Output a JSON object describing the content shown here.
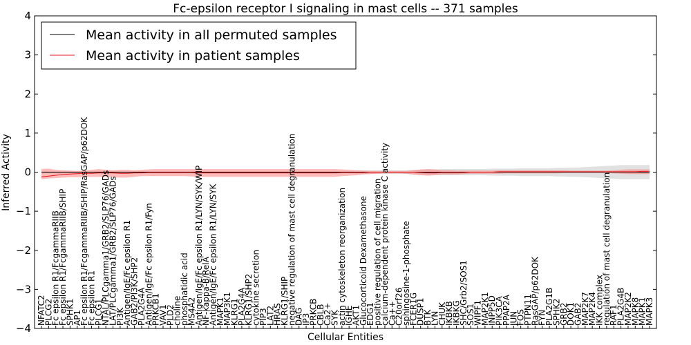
{
  "chart_data": {
    "type": "line",
    "title": "Fc-epsilon receptor I signaling in mast cells -- 371 samples",
    "xlabel": "Cellular Entities",
    "ylabel": "Inferred Activity",
    "ylim": [
      -4,
      4
    ],
    "yticks": [
      -4,
      -3,
      -2,
      -1,
      0,
      1,
      2,
      3,
      4
    ],
    "ytick_labels": [
      "−4",
      "−3",
      "−2",
      "−1",
      "0",
      "1",
      "2",
      "3",
      "4"
    ],
    "legend": {
      "placement": "top-left",
      "entries": [
        {
          "label": "Mean activity in all permuted samples",
          "color": "#000000"
        },
        {
          "label": "Mean activity in patient samples",
          "color": "#e41a1c"
        }
      ]
    },
    "categories": [
      "NFATC2",
      "PLCG2",
      "Fc epsilon R1/FcgammaRIIB",
      "Fc epsilon R1/FcgammaRIIB/SHIP",
      "SPHK1",
      "AP1",
      "Fc epsilon R1/FcgammaRIIB/SHIP/RasGAP/p62DOK",
      "Fc epsilon R1",
      "PLCG1",
      "NTAL/PLCgamma1/GRB2/SLP76/GADs",
      "LAT/PLCgamma1/GRB2/SLP76/GADs",
      "PI3K",
      "Antigen/IgE/Fc epsilon R1",
      "GAB2/PI3K/SHP2",
      "PLA2G4A",
      "Antigen/IgE/Fc epsilon R1/Fyn",
      "PRKCB1",
      "VAV1",
      "PLD2",
      "choline",
      "phosphatidic acid",
      "MS4A2",
      "Antigen/IgE/Fc epsilon R1/LYN/SYK/WIP",
      "NF-kappa-B/RelA",
      "Antigen/IgE/Fc epsilon R1/LYN/SYK",
      "MAPK1",
      "MAP3K1",
      "KLRG1",
      "PLA2G4A",
      "KLRG1/SHP2",
      "cytokine secretion",
      "PIP3",
      "LAT2",
      "HRAS",
      "KLRG1/SHIP",
      "negative regulation of mast cell degranulation",
      "DAG",
      "IP3",
      "PRKCB",
      "CBLB",
      "Ca2+",
      "SYK",
      "actin cytoskeleton reorganization",
      "IGHE",
      "AKT1",
      "Glucocorticoid Dexamethasone",
      "EDG1",
      "positive regulation of cell migration",
      "calcium-dependent protein kinase C activity",
      "Ca++",
      "C20orf26",
      "sphingosine-1-phosphate",
      "FCER1G",
      "DUSP1",
      "BTK",
      "LYN",
      "CHUK",
      "IKBKB",
      "IKBKG",
      "SHC/Grb2/SOS1",
      "SOS1",
      "WIPF1",
      "MAP2K1",
      "INPP5D",
      "PIK3CA",
      "PPAP2A",
      "JUN",
      "FOS",
      "PTPN11",
      "RasGAP/p62DOK",
      "FYN",
      "PLA2G1B",
      "SPHK2",
      "GRB2",
      "DOK1",
      "GAB2",
      "MAP2K7",
      "MAP2K4",
      "IKK complex",
      "regulation of mast cell degranulation",
      "RAF1",
      "PLA2G4B",
      "MAP2K2",
      "MAPK8",
      "MAPK1",
      "MAPK3"
    ],
    "series": [
      {
        "name": "Mean activity in patient samples",
        "color": "#e41a1c",
        "values": [
          -0.12,
          -0.1,
          -0.08,
          -0.06,
          -0.05,
          -0.04,
          -0.03,
          -0.03,
          -0.02,
          -0.02,
          -0.02,
          -0.03,
          -0.03,
          -0.02,
          -0.02,
          -0.01,
          -0.01,
          -0.01,
          -0.01,
          -0.01,
          -0.01,
          -0.01,
          -0.02,
          -0.02,
          -0.02,
          -0.02,
          -0.02,
          -0.02,
          -0.02,
          -0.02,
          -0.02,
          -0.02,
          -0.02,
          -0.02,
          -0.02,
          -0.02,
          -0.02,
          -0.02,
          -0.02,
          -0.02,
          -0.02,
          -0.02,
          -0.01,
          -0.01,
          -0.01,
          -0.01,
          0.0,
          0.0,
          0.0,
          0.0,
          0.0,
          0.0,
          0.0,
          -0.01,
          -0.02,
          -0.02,
          -0.01,
          -0.01,
          -0.01,
          -0.01,
          0.0,
          0.0,
          0.0,
          0.0,
          0.01,
          0.01,
          0.01,
          0.01,
          0.01,
          0.01,
          0.01,
          0.01,
          0.01,
          0.01,
          0.01,
          0.01,
          0.01,
          0.01,
          0.01,
          0.01,
          0.01,
          0.01,
          0.01,
          0.01,
          0.02,
          0.02
        ],
        "lower": [
          -0.18,
          -0.16,
          -0.15,
          -0.14,
          -0.13,
          -0.13,
          -0.12,
          -0.12,
          -0.12,
          -0.12,
          -0.13,
          -0.14,
          -0.14,
          -0.12,
          -0.1,
          -0.1,
          -0.1,
          -0.1,
          -0.1,
          -0.1,
          -0.1,
          -0.11,
          -0.12,
          -0.12,
          -0.12,
          -0.12,
          -0.12,
          -0.12,
          -0.12,
          -0.12,
          -0.12,
          -0.12,
          -0.12,
          -0.12,
          -0.12,
          -0.12,
          -0.12,
          -0.12,
          -0.12,
          -0.12,
          -0.12,
          -0.12,
          -0.1,
          -0.09,
          -0.08,
          -0.06,
          -0.05,
          -0.04,
          -0.03,
          -0.03,
          -0.03,
          -0.04,
          -0.06,
          -0.08,
          -0.09,
          -0.08,
          -0.06,
          -0.06,
          -0.06,
          -0.05,
          -0.04,
          -0.04,
          -0.04,
          -0.04,
          -0.04,
          -0.03,
          -0.03,
          -0.03,
          -0.03,
          -0.03,
          -0.03,
          -0.03,
          -0.03,
          -0.02,
          -0.02,
          -0.02,
          -0.02,
          -0.02,
          -0.02,
          -0.02,
          -0.03,
          -0.04,
          -0.05,
          -0.05,
          -0.05,
          -0.05
        ],
        "upper": [
          0.08,
          0.09,
          0.06,
          0.05,
          0.04,
          0.03,
          0.04,
          0.06,
          0.08,
          0.06,
          0.05,
          0.06,
          0.06,
          0.05,
          0.06,
          0.07,
          0.08,
          0.08,
          0.08,
          0.08,
          0.08,
          0.08,
          0.08,
          0.08,
          0.08,
          0.08,
          0.08,
          0.08,
          0.08,
          0.08,
          0.08,
          0.08,
          0.08,
          0.08,
          0.08,
          0.08,
          0.08,
          0.08,
          0.08,
          0.08,
          0.08,
          0.08,
          0.07,
          0.06,
          0.05,
          0.04,
          0.03,
          0.03,
          0.03,
          0.03,
          0.03,
          0.03,
          0.05,
          0.07,
          0.08,
          0.07,
          0.05,
          0.05,
          0.04,
          0.04,
          0.04,
          0.04,
          0.04,
          0.04,
          0.05,
          0.05,
          0.05,
          0.05,
          0.05,
          0.05,
          0.05,
          0.05,
          0.05,
          0.05,
          0.04,
          0.04,
          0.04,
          0.04,
          0.04,
          0.04,
          0.05,
          0.06,
          0.07,
          0.07,
          0.07,
          0.07
        ]
      },
      {
        "name": "Mean activity in all permuted samples",
        "color": "#000000",
        "values": [
          0,
          0,
          0,
          0,
          0,
          0,
          0,
          0,
          0,
          0,
          0,
          0,
          0,
          0,
          0,
          0,
          0,
          0,
          0,
          0,
          0,
          0,
          0,
          0,
          0,
          0,
          0,
          0,
          0,
          0,
          0,
          0,
          0,
          0,
          0,
          0,
          0,
          0,
          0,
          0,
          0,
          0,
          0,
          0,
          0,
          0,
          0,
          0,
          0,
          0,
          0,
          0,
          0,
          0,
          0,
          0,
          0,
          0,
          0,
          0,
          0,
          0,
          0,
          0,
          0,
          0,
          0,
          0,
          0,
          0,
          0,
          0,
          0,
          0,
          0,
          0,
          0,
          0,
          0,
          0,
          0,
          0,
          0,
          0,
          0,
          0
        ],
        "lower": [
          -0.03,
          -0.03,
          -0.03,
          -0.03,
          -0.03,
          -0.03,
          -0.03,
          -0.03,
          -0.03,
          -0.03,
          -0.03,
          -0.03,
          -0.03,
          -0.03,
          -0.03,
          -0.03,
          -0.03,
          -0.03,
          -0.03,
          -0.03,
          -0.03,
          -0.03,
          -0.03,
          -0.03,
          -0.03,
          -0.03,
          -0.03,
          -0.03,
          -0.03,
          -0.03,
          -0.03,
          -0.03,
          -0.03,
          -0.03,
          -0.03,
          -0.03,
          -0.03,
          -0.03,
          -0.03,
          -0.03,
          -0.03,
          -0.03,
          -0.03,
          -0.03,
          -0.04,
          -0.04,
          -0.05,
          -0.05,
          -0.05,
          -0.05,
          -0.05,
          -0.05,
          -0.06,
          -0.06,
          -0.07,
          -0.07,
          -0.08,
          -0.08,
          -0.08,
          -0.08,
          -0.08,
          -0.08,
          -0.08,
          -0.09,
          -0.09,
          -0.09,
          -0.09,
          -0.1,
          -0.1,
          -0.1,
          -0.1,
          -0.1,
          -0.11,
          -0.11,
          -0.12,
          -0.12,
          -0.13,
          -0.14,
          -0.15,
          -0.16,
          -0.17,
          -0.18,
          -0.18,
          -0.18,
          -0.18,
          -0.18
        ],
        "upper": [
          0.03,
          0.03,
          0.03,
          0.03,
          0.03,
          0.03,
          0.03,
          0.03,
          0.03,
          0.03,
          0.03,
          0.03,
          0.03,
          0.03,
          0.03,
          0.03,
          0.03,
          0.03,
          0.03,
          0.03,
          0.03,
          0.03,
          0.03,
          0.03,
          0.03,
          0.03,
          0.03,
          0.03,
          0.03,
          0.03,
          0.03,
          0.03,
          0.03,
          0.03,
          0.03,
          0.03,
          0.03,
          0.03,
          0.03,
          0.03,
          0.03,
          0.03,
          0.03,
          0.03,
          0.04,
          0.04,
          0.05,
          0.05,
          0.05,
          0.05,
          0.05,
          0.05,
          0.06,
          0.06,
          0.07,
          0.07,
          0.08,
          0.08,
          0.08,
          0.08,
          0.08,
          0.08,
          0.08,
          0.09,
          0.09,
          0.09,
          0.09,
          0.1,
          0.1,
          0.1,
          0.1,
          0.1,
          0.11,
          0.11,
          0.12,
          0.12,
          0.13,
          0.14,
          0.15,
          0.16,
          0.17,
          0.18,
          0.18,
          0.18,
          0.18,
          0.18
        ]
      }
    ]
  }
}
